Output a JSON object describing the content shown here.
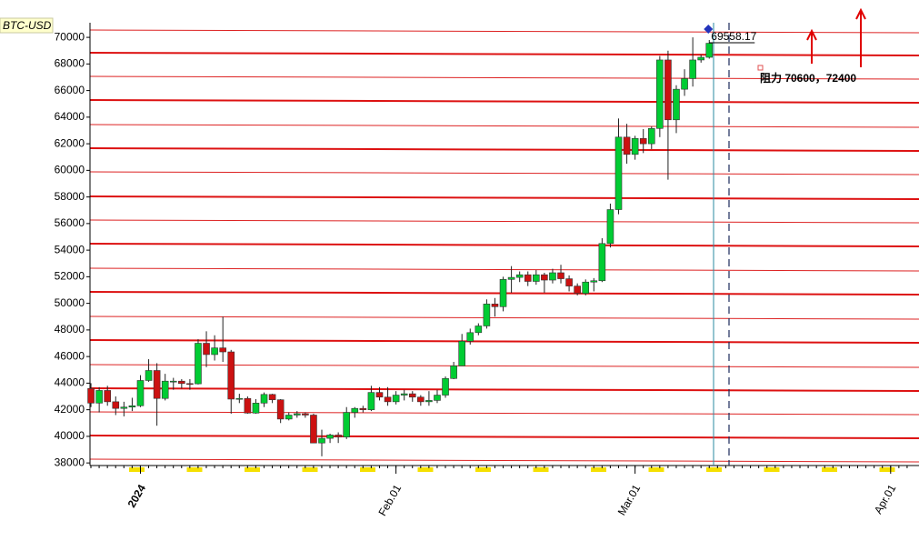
{
  "chart_data": {
    "type": "candlestick",
    "symbol": "BTC-USD",
    "annotation": "阻力 70600，72400",
    "x": [
      0,
      1,
      2,
      3,
      4,
      5,
      6,
      7,
      8,
      9,
      10,
      11,
      12,
      13,
      14,
      15,
      16,
      17,
      18,
      19,
      20,
      21,
      22,
      23,
      24,
      25,
      26,
      27,
      28,
      29,
      30,
      31,
      32,
      33,
      34,
      35,
      36,
      37,
      38,
      39,
      40,
      41,
      42,
      43,
      44,
      45,
      46,
      47,
      48,
      49,
      50,
      51,
      52,
      53,
      54,
      55,
      56,
      57,
      58,
      59,
      60,
      61,
      62,
      63,
      64,
      65,
      66,
      67,
      68,
      69,
      70,
      71,
      72,
      73,
      74,
      75
    ],
    "open": [
      43600,
      42500,
      43450,
      42600,
      42100,
      42200,
      42300,
      44200,
      44950,
      42850,
      44150,
      44150,
      43970,
      43950,
      47000,
      46150,
      46650,
      46350,
      42800,
      42850,
      41750,
      42500,
      43150,
      42750,
      41300,
      41600,
      41700,
      41600,
      39500,
      39850,
      40100,
      39950,
      41800,
      42100,
      42000,
      43300,
      42950,
      42600,
      43100,
      43200,
      42950,
      42600,
      42700,
      43100,
      44350,
      45300,
      47150,
      47800,
      48300,
      49950,
      49750,
      51800,
      51950,
      52150,
      51650,
      52150,
      51750,
      52300,
      51850,
      51300,
      50750,
      51600,
      51700,
      54500,
      57050,
      62500,
      61200,
      62400,
      62000,
      63150,
      68300,
      63800,
      66100,
      66900,
      68300,
      68500
    ],
    "high": [
      44000,
      43700,
      43800,
      43000,
      42600,
      42900,
      44600,
      45800,
      45500,
      44700,
      44400,
      44300,
      44300,
      47300,
      47900,
      47600,
      49000,
      46500,
      43200,
      43000,
      42800,
      43300,
      43200,
      42800,
      41800,
      41900,
      41800,
      41700,
      40500,
      40200,
      40300,
      42200,
      42200,
      42300,
      43800,
      43700,
      43700,
      43400,
      43500,
      43400,
      43100,
      43400,
      43500,
      44500,
      45600,
      47700,
      48100,
      48500,
      50300,
      50400,
      52000,
      52800,
      52400,
      52400,
      52500,
      52300,
      52600,
      52900,
      52100,
      51500,
      51800,
      51900,
      54900,
      57500,
      63900,
      63500,
      62600,
      63100,
      63300,
      68600,
      69000,
      66400,
      67600,
      70000,
      68700,
      69800
    ],
    "low": [
      42200,
      41800,
      42300,
      41600,
      41500,
      41900,
      42200,
      44100,
      40800,
      42700,
      43500,
      43600,
      43500,
      43900,
      45200,
      45700,
      45600,
      41700,
      42500,
      41700,
      41700,
      42200,
      42500,
      41000,
      41200,
      41400,
      41400,
      39500,
      38500,
      39500,
      39500,
      39800,
      41400,
      41800,
      41900,
      42700,
      42300,
      42400,
      42700,
      42600,
      42300,
      42300,
      42500,
      42900,
      44300,
      45300,
      46900,
      47600,
      48100,
      49000,
      49400,
      50800,
      51600,
      51300,
      51400,
      50800,
      51500,
      51500,
      50900,
      50600,
      50600,
      50900,
      51600,
      54200,
      56700,
      60500,
      60800,
      61300,
      61600,
      62500,
      59300,
      62800,
      65600,
      66300,
      68100,
      68400
    ],
    "close": [
      42500,
      43450,
      42600,
      42100,
      42200,
      42300,
      44200,
      44950,
      42850,
      44150,
      44150,
      43970,
      43950,
      47000,
      46150,
      46650,
      46350,
      42800,
      42850,
      41750,
      42500,
      43150,
      42750,
      41300,
      41600,
      41700,
      41600,
      39500,
      39850,
      40100,
      39950,
      41800,
      42100,
      42000,
      43300,
      42950,
      42600,
      43100,
      43200,
      42950,
      42600,
      42700,
      43100,
      44350,
      45300,
      47150,
      47800,
      48300,
      49950,
      49750,
      51800,
      51950,
      52150,
      51650,
      52150,
      51750,
      52300,
      51850,
      51300,
      50750,
      51600,
      51700,
      54500,
      57050,
      62500,
      61200,
      62400,
      62000,
      63150,
      68300,
      63800,
      66100,
      66900,
      68300,
      68500,
      69558.17
    ],
    "up_color": "#00cc33",
    "down_color": "#cc1111",
    "xlim": [
      -1,
      100
    ],
    "xticks": [
      {
        "value": 6,
        "label": "2024"
      },
      {
        "value": 37,
        "label": "Feb.01"
      },
      {
        "value": 66,
        "label": "Mar.01"
      },
      {
        "value": 97,
        "label": "Apr.01"
      }
    ],
    "ylim": [
      37600,
      71100
    ],
    "yticks": [
      38000,
      40000,
      42000,
      44000,
      46000,
      48000,
      50000,
      52000,
      54000,
      56000,
      58000,
      60000,
      62000,
      64000,
      66000,
      68000,
      70000
    ],
    "grid": false
  }
}
